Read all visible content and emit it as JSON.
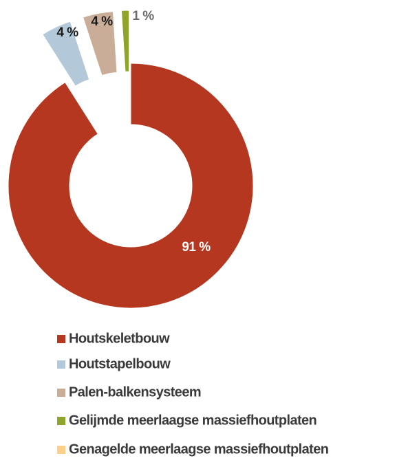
{
  "chart_data": {
    "type": "donut",
    "categories": [
      "Houtskeletbouw",
      "Houtstapelbouw",
      "Palen-balkensysteem",
      "Gelijmde meerlaagse massiefhoutplaten",
      "Genagelde meerlaagse massiefhoutplaten"
    ],
    "values": [
      91,
      4,
      4,
      1,
      0
    ],
    "value_labels": [
      "91 %",
      "4 %",
      "4 %",
      "1 %",
      null
    ],
    "colors": [
      "#b5371f",
      "#b3c8d8",
      "#c9ad98",
      "#8ea42a",
      "#fcd088"
    ],
    "legend": "bottom"
  }
}
